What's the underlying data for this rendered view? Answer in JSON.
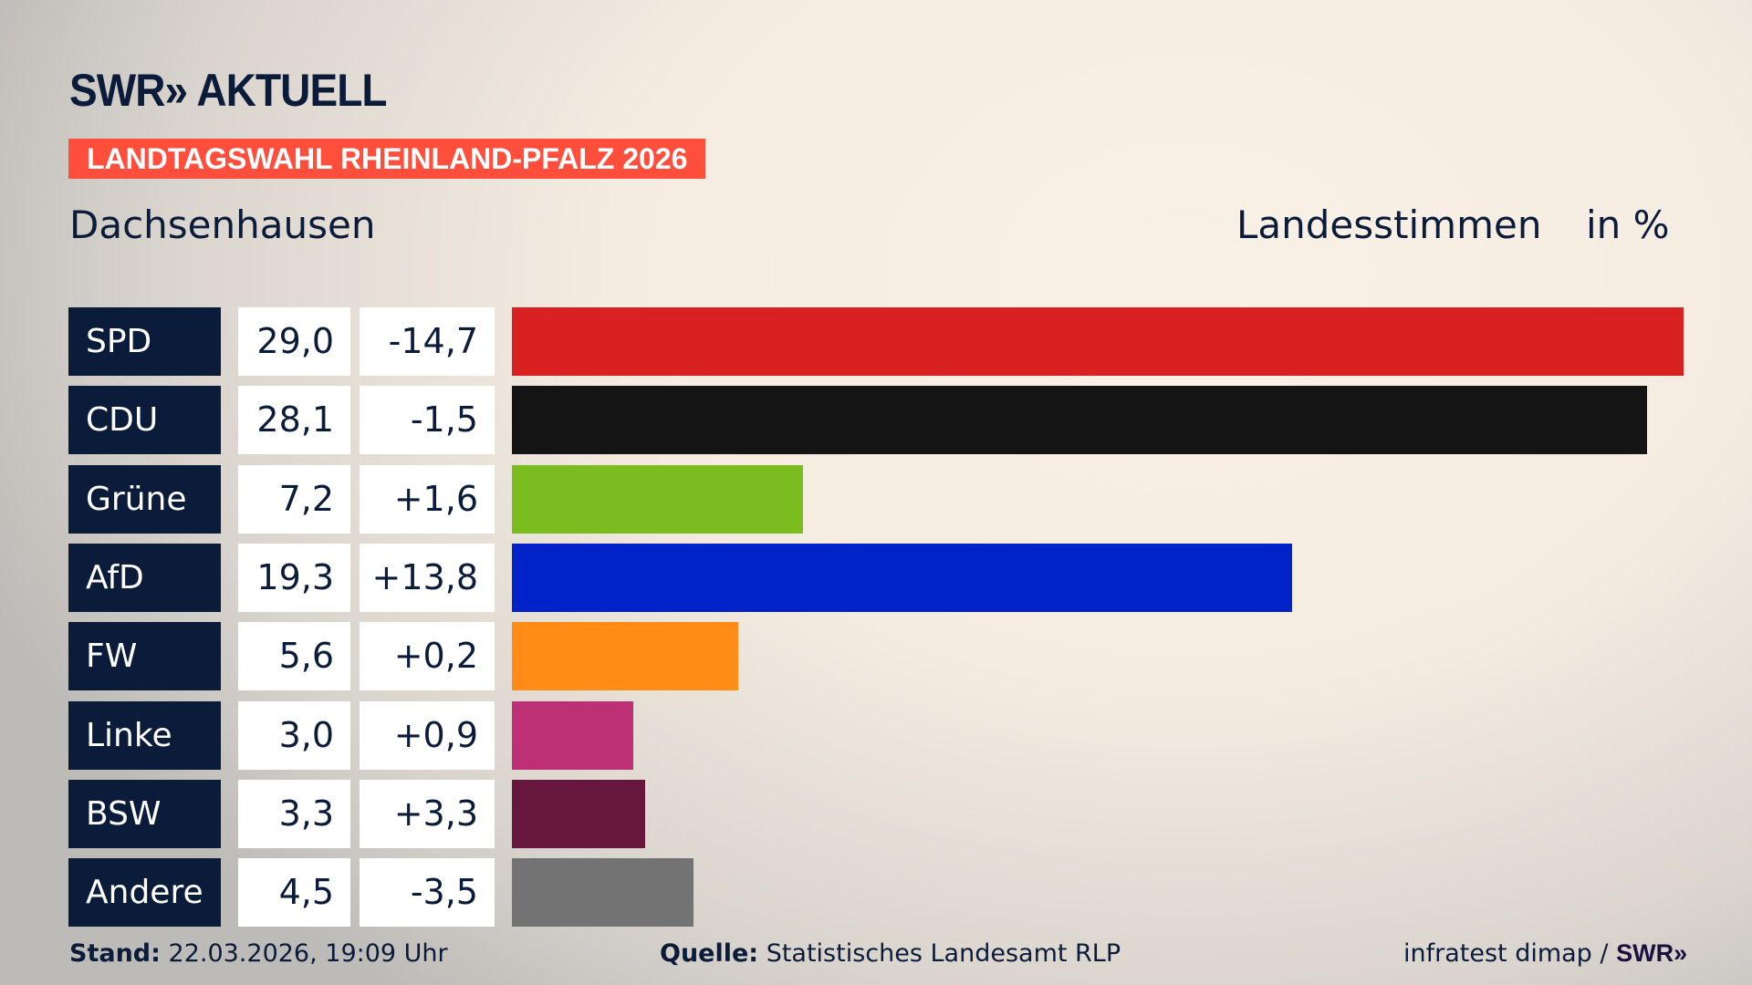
{
  "header": {
    "logo": "SWR» AKTUELL",
    "banner": "LANDTAGSWAHL RHEINLAND-PFALZ 2026",
    "location": "Dachsenhausen",
    "vote_type": "Landesstimmen",
    "unit": "in %"
  },
  "chart_data": {
    "type": "bar",
    "orientation": "horizontal",
    "categories": [
      "SPD",
      "CDU",
      "Grüne",
      "AfD",
      "FW",
      "Linke",
      "BSW",
      "Andere"
    ],
    "values": [
      29.0,
      28.1,
      7.2,
      19.3,
      5.6,
      3.0,
      3.3,
      4.5
    ],
    "value_labels": [
      "29,0",
      "28,1",
      "7,2",
      "19,3",
      "5,6",
      "3,0",
      "3,3",
      "4,5"
    ],
    "change_labels": [
      "-14,7",
      "-1,5",
      "+1,6",
      "+13,8",
      "+0,2",
      "+0,9",
      "+3,3",
      "-3,5"
    ],
    "colors": [
      "#d92121",
      "#141414",
      "#7bbd1e",
      "#0022c9",
      "#ff8c17",
      "#bd3075",
      "#67173d",
      "#737373"
    ],
    "grid": false
  },
  "footer": {
    "stand_label": "Stand:",
    "stand_value": "22.03.2026, 19:09 Uhr",
    "source_label": "Quelle:",
    "source_value": "Statistisches Landesamt RLP",
    "credit": "infratest dimap /",
    "credit_logo": "SWR»"
  }
}
